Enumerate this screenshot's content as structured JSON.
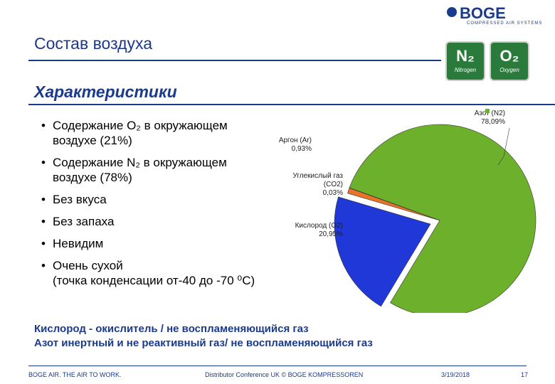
{
  "header": {
    "title": "Состав воздуха",
    "subtitle": "Характеристики",
    "logo": "BOGE",
    "logo_tagline": "COMPRESSED AIR SYSTEMS",
    "badges": [
      {
        "symbol": "N₂",
        "name": "Nitrogen"
      },
      {
        "symbol": "O₂",
        "name": "Oxygen"
      }
    ]
  },
  "bullets": [
    "Содержание O₂ в окружающем\nвоздухе (21%)",
    "Содержание N₂ в окружающем\nвоздухе (78%)",
    "Без вкуса",
    "Без запаха",
    "Невидим",
    "Очень сухой\n(точка конденсации от-40 до -70 ⁰C)"
  ],
  "notes": [
    "Кислород - окислитель / не воспламеняющийся газ",
    "Азот инертный и не реактивный газ/ не воспламеняющийся газ"
  ],
  "chart_data": {
    "type": "pie",
    "categories": [
      "Азот (N2)",
      "Кислород (O2)",
      "Аргон (Ar)",
      "Углекислый газ\n(CO2)"
    ],
    "values": [
      78.09,
      20.95,
      0.93,
      0.03
    ],
    "value_labels": [
      "78,09%",
      "20,95%",
      "0,93%",
      "0,03%"
    ],
    "colors": [
      "#6cb02c",
      "#2038d8",
      "#e8742a",
      "#a03010"
    ]
  },
  "footer": {
    "slogan": "BOGE AIR. THE AIR TO WORK.",
    "event": "Distributor Conference UK © BOGE KOMPRESSOREN",
    "date": "3/19/2018",
    "page": "17"
  }
}
